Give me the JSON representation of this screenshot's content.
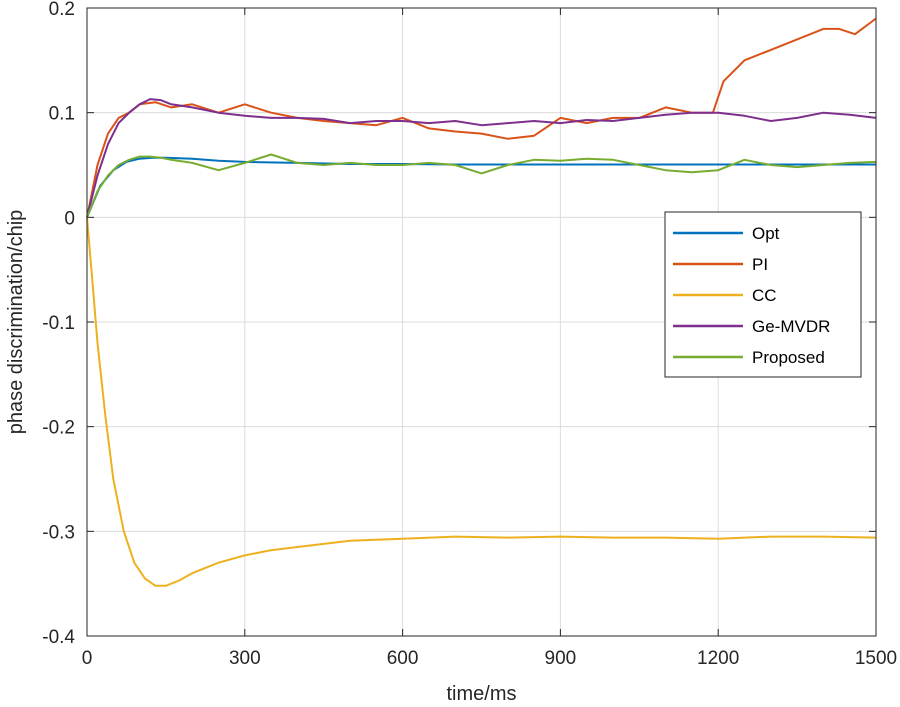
{
  "chart_data": {
    "type": "line",
    "xlabel": "time/ms",
    "ylabel": "phase discrimination/chip",
    "xlim": [
      0,
      1500
    ],
    "ylim": [
      -0.4,
      0.2
    ],
    "xticks": [
      0,
      300,
      600,
      900,
      1200,
      1500
    ],
    "xtick_labels": [
      "0",
      "300",
      "600",
      "900",
      "1200",
      "1500"
    ],
    "yticks": [
      -0.4,
      -0.3,
      -0.2,
      -0.1,
      0,
      0.1,
      0.2
    ],
    "ytick_labels": [
      "-0.4",
      "-0.3",
      "-0.2",
      "-0.1",
      "0",
      "0.1",
      "0.2"
    ],
    "grid": true,
    "legend_position": "right",
    "series": [
      {
        "name": "Opt",
        "color": "#0072BD",
        "x": [
          0,
          25,
          50,
          75,
          100,
          125,
          150,
          200,
          250,
          300,
          400,
          500,
          600,
          700,
          800,
          900,
          1000,
          1100,
          1200,
          1300,
          1400,
          1500
        ],
        "y": [
          0,
          0.03,
          0.045,
          0.053,
          0.056,
          0.057,
          0.057,
          0.056,
          0.054,
          0.053,
          0.052,
          0.051,
          0.051,
          0.0505,
          0.0505,
          0.0505,
          0.0505,
          0.0505,
          0.0505,
          0.0505,
          0.0505,
          0.0505
        ]
      },
      {
        "name": "PI",
        "color": "#D95319",
        "x": [
          0,
          20,
          40,
          60,
          80,
          100,
          130,
          160,
          200,
          250,
          300,
          350,
          400,
          450,
          500,
          550,
          600,
          650,
          700,
          750,
          800,
          850,
          900,
          950,
          1000,
          1050,
          1100,
          1150,
          1190,
          1210,
          1250,
          1300,
          1350,
          1400,
          1430,
          1460,
          1500
        ],
        "y": [
          0,
          0.05,
          0.08,
          0.095,
          0.1,
          0.108,
          0.11,
          0.105,
          0.108,
          0.1,
          0.108,
          0.1,
          0.095,
          0.092,
          0.09,
          0.088,
          0.095,
          0.085,
          0.082,
          0.08,
          0.075,
          0.078,
          0.095,
          0.09,
          0.095,
          0.095,
          0.105,
          0.1,
          0.1,
          0.13,
          0.15,
          0.16,
          0.17,
          0.18,
          0.18,
          0.175,
          0.19
        ]
      },
      {
        "name": "CC",
        "color": "#EDB120",
        "x": [
          0,
          10,
          20,
          35,
          50,
          70,
          90,
          110,
          130,
          150,
          175,
          200,
          250,
          300,
          350,
          400,
          500,
          600,
          700,
          800,
          900,
          1000,
          1100,
          1200,
          1300,
          1400,
          1500
        ],
        "y": [
          0,
          -0.06,
          -0.12,
          -0.19,
          -0.25,
          -0.3,
          -0.33,
          -0.345,
          -0.352,
          -0.352,
          -0.347,
          -0.34,
          -0.33,
          -0.323,
          -0.318,
          -0.315,
          -0.309,
          -0.307,
          -0.305,
          -0.306,
          -0.305,
          -0.306,
          -0.306,
          -0.307,
          -0.305,
          -0.305,
          -0.306
        ]
      },
      {
        "name": "Ge-MVDR",
        "color": "#7E2F8E",
        "x": [
          0,
          20,
          40,
          60,
          80,
          100,
          120,
          140,
          160,
          200,
          250,
          300,
          350,
          400,
          450,
          500,
          550,
          600,
          650,
          700,
          750,
          800,
          850,
          900,
          950,
          1000,
          1050,
          1100,
          1150,
          1200,
          1250,
          1300,
          1350,
          1400,
          1450,
          1500
        ],
        "y": [
          0,
          0.04,
          0.07,
          0.09,
          0.1,
          0.108,
          0.113,
          0.112,
          0.108,
          0.105,
          0.1,
          0.097,
          0.095,
          0.095,
          0.094,
          0.09,
          0.092,
          0.092,
          0.09,
          0.092,
          0.088,
          0.09,
          0.092,
          0.09,
          0.093,
          0.092,
          0.095,
          0.098,
          0.1,
          0.1,
          0.097,
          0.092,
          0.095,
          0.1,
          0.098,
          0.095
        ]
      },
      {
        "name": "Proposed",
        "color": "#77AC30",
        "x": [
          0,
          20,
          40,
          60,
          80,
          100,
          120,
          140,
          160,
          200,
          250,
          300,
          350,
          400,
          450,
          500,
          550,
          600,
          650,
          700,
          750,
          800,
          850,
          900,
          950,
          1000,
          1050,
          1100,
          1150,
          1200,
          1250,
          1300,
          1350,
          1400,
          1450,
          1500
        ],
        "y": [
          0,
          0.025,
          0.04,
          0.05,
          0.055,
          0.058,
          0.058,
          0.057,
          0.055,
          0.052,
          0.045,
          0.052,
          0.06,
          0.052,
          0.05,
          0.052,
          0.05,
          0.05,
          0.052,
          0.05,
          0.042,
          0.05,
          0.055,
          0.054,
          0.056,
          0.055,
          0.05,
          0.045,
          0.043,
          0.045,
          0.055,
          0.05,
          0.048,
          0.05,
          0.052,
          0.053
        ]
      }
    ]
  }
}
